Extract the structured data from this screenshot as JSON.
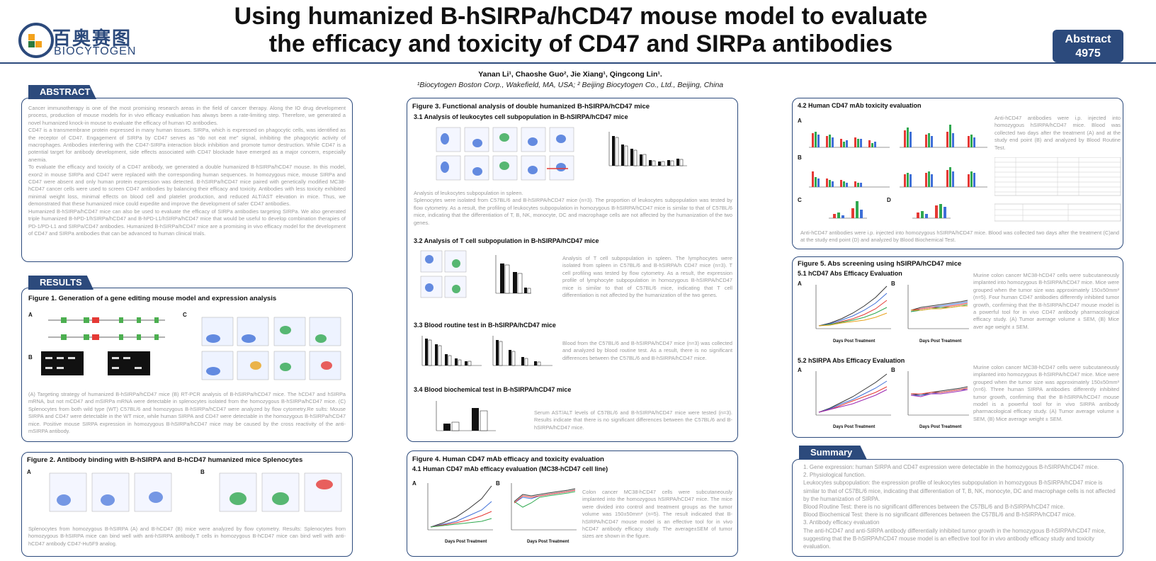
{
  "header": {
    "logo_cn": "百奥赛图",
    "logo_en": "BIOCYTOGEN",
    "title_line1": "Using humanized B-hSIRPa/hCD47 mouse model to evaluate",
    "title_line2": "the efficacy and toxicity of CD47 and SIRPa antibodies",
    "badge_line1": "Abstract",
    "badge_line2": "4975"
  },
  "authors": "Yanan Li¹, Chaoshe Guo², Jie Xiang¹, Qingcong Lin¹.",
  "affiliation": "¹Biocytogen Boston Corp., Wakefield, MA, USA; ² Beijing Biocytogen Co., Ltd., Beijing, China",
  "abstract": {
    "tab": "ABSTRACT",
    "p1": "Cancer immunotherapy is one of the most promising research areas in the field of cancer therapy. Along the IO drug development process, production of mouse models for in vivo efficacy evaluation has always been a rate-limiting step. Therefore, we generated a novel humanized knock-in mouse to evaluate the efficacy of human IO antibodies.",
    "p2": "CD47 is a transmembrane protein expressed in many human tissues. SIRPa, which is expressed on phagocytic cells, was identified as the receptor of CD47. Engagement of SIRPa by CD47 serves as \"do not eat me\" signal, inhibiting the phagocytic activity of macrophages. Antibodies interfering with the CD47-SIRPa interaction block inhibition and promote tumor destruction. While CD47 is a potential target for antibody development, side effects associated with CD47 blockade have emerged as a major concern, especially anemia.",
    "p3": "To evaluate the efficacy and toxicity of a CD47 antibody, we generated a double humanized B-hSIRPa/hCD47 mouse. In this model, exon2 in mouse SIRPa and CD47 were replaced with the corresponding human sequences. In homozygous mice, mouse SIRPa and CD47 were absent and only human protein expression was detected. B-hSIRPa/hCD47 mice paired with genetically modified MC38-hCD47 cancer cells were used to screen CD47 antibodies by balancing their efficacy and toxicity. Antibodies with less toxicity exhibited minimal weight loss, minimal effects on blood cell and platelet production, and reduced ALT/AST elevation in mice. Thus, we demonstrated that these humanized mice could expedite and improve the development of safer CD47 antibodies.",
    "p4": "Humanized B-hSIRPa/hCD47 mice can also be used to evaluate the efficacy of SIRPa antibodies targeting SIRPa. We also generated triple humanized B-hPD-1/hSIRPa/hCD47 and B-hPD-L1/hSIRPa/hCD47 mice that would be useful to develop combination therapies of PD-1/PD-L1 and SIRPa/CD47 antibodies. Humanized B-hSIRPa/hCD47 mice are a promising in vivo efficacy model for the development of CD47 and SIRPa antibodies that can be advanced to human clinical trials."
  },
  "results": {
    "tab": "RESULTS",
    "fig1": {
      "title": "Figure 1. Generation of a gene editing mouse model and expression analysis",
      "labels": [
        "A",
        "B",
        "C"
      ],
      "caption": "(A) Targeting strategy of humanized B-hSIRPa/hCD47 mice (B) RT-PCR analysis of B-hSIRPa/hCD47 mice. The hCD47 and hSIRPa mRNA, but not mCD47 and mSIRPa mRNA were detectable in splenocytes isolated from the homozygous B-hSIRPa/hCD47 mice. (C) Splenocytes from both wild type (WT) C57BL/6 and homozygous B-hSIRPa/hCD47 were analyzed by flow cytometry.Re sults: Mouse SIRPA and CD47 were detectable in the WT mice, while human SIRPA and CD47 were detectable in the homozygous B-hSIRPa/hCD47 mice. Positive mouse SIRPA expression in homozygous B-hSIRPa/hCD47 mice may be caused by the cross reactivity of the anti-mSIRPA antibody."
    },
    "fig2": {
      "title": "Figure 2. Antibody binding with B-hSIRPA and B-hCD47 humanized  mice Splenocytes",
      "labels": [
        "A",
        "B"
      ],
      "caption": "Splenocytes from homozygous B-hSIRPA (A) and B-hCD47 (B) mice were analyzed by flow cytometry. Results: Splenocytes from homozygous B-hSIRPA mice can bind well with anti-hSIRPA antibody.T cells in homozygous B-hCD47 mice can bind well with anti-hCD47 antibody CD47-Hu5F9 analog."
    }
  },
  "fig3": {
    "title": "Figure 3. Functional analysis of double humanized B-hSIRPA/hCD47 mice",
    "s1_title": "3.1 Analysis of leukocytes cell subpopulation in B-hSIRPA/hCD47 mice",
    "s1_text_a": "Analysis of leukocytes subpopulation in spleen.",
    "s1_text_b": "Splenocytes were isolated from C57BL/6 and B-hSIRPA/hCD47 mice (n=3). The proportion of leukocytes subpopulation was tested by flow cytometry. As a result, the profiling of leukocytes subpopulation in homozygous B-hSIRPA/hCD47 mice is similar to that of C57BL/6 mice, indicating that the differentiation of T, B, NK, monocyte, DC and macrophage cells are not affected by the humanization of the two genes.",
    "s2_title": "3.2 Analysis of T cell subpopulation in B-hSIRPA/hCD47 mice",
    "s2_text": "Analysis of T cell subpopulation in spleen. The lymphocytes were isolated from spleen in C57BL/6 and B-hSIRPA/h CD47 mice (n=3). T cell profiling was tested by flow cytometry. As a result, the expression profile of lymphocyte subpopulation in homozygous B-hSIRPA/hCD47 mice is similar to that of C57BL/6 mice, indicating that T cell differentiation is not affected by the humanization of the two genes.",
    "s3_title": "3.3 Blood routine test in B-hSIRPA/hCD47 mice",
    "s3_text": "Blood from the C57BL/6 and B-hSIRPA/hCD47 mice (n=3) was collected and analyzed by blood routine test. As a result, there is no significant differences between the C57BL/6 and B-hSIRPA/hCD47 mice.",
    "s4_title": "3.4 Blood biochemical test in B-hSIRPA/hCD47 mice",
    "s4_text": "Serum AST/ALT levels of C57BL/6 and B-hSIRPA/hCD47 mice were tested (n=3). Results indicate that there is no significant differences between the C57BL/6 and B-hSIRPA/hCD47 mice."
  },
  "fig4": {
    "title": "Figure 4. Human CD47 mAb efficacy and toxicity evaluation",
    "s1_title": "4.1 Human CD47 mAb efficacy evaluation (MC38-hCD47 cell line)",
    "labels": [
      "A",
      "B"
    ],
    "s1_text": "Colon cancer MC38-hCD47 cells were subcutaneously implanted into the homozygous hSIRPA/hCD47 mice. The mice were divided into control and treatment groups as the tumor volume was 150±50mm³ (n=5). The result indicated that B-hSIRPA/hCD47 mouse model is an effective tool for in vivo hCD47 antibody efficacy study. The average±SEM of tumor sizes are shown in the figure.",
    "xlabel": "Days Post Treatment",
    "s2_title": "4.2 Human CD47 mAb toxicity evaluation",
    "s2_labels": [
      "A",
      "B",
      "C",
      "D"
    ],
    "s2_text_right": "Anti-hCD47 antibodies were i.p. injected into homozygous hSIRPA/hCD47 mice. Blood was collected two days after the treatment (A) and at the study end point (B) and analyzed by Blood Routine Test.",
    "s2_text_bottom": "Anti-hCD47 antibodies were i.p. injected into homozygous hSIRPA/hCD47 mice. Blood was collected two days after the treatment (C)and at the study end point (D) and analyzed by Blood Biochemical Test."
  },
  "fig5": {
    "title": "Figure 5. Abs screening using hSIRPA/hCD47 mice",
    "s1_title": "5.1 hCD47 Abs Efficacy Evaluation",
    "s1_text": "Murine colon cancer MC38-hCD47 cells were subcutaneously implanted into homozygous B-hSIRPA/hCD47 mice. Mice were grouped when the tumor size was approximately 150±50mm³ (n=5). Four human CD47 antibodies differently inhibited tumor growth, confirming that the B-hSIRPA/hCD47 mouse model is a powerful tool for in vivo CD47 antibody pharmacological efficacy study. (A) Tumor average volume ± SEM, (B) Mice aver age weight ± SEM.",
    "s2_title": "5.2 hSIRPA Abs Efficacy Evaluation",
    "s2_text": "Murine colon cancer MC38-hCD47 cells were subcutaneously implanted into homozygous B-hSIRPA/hCD47 mice. Mice were grouped when the tumor size was approximately 150±50mm³ (n=6). Three human SIRPA antibodies differently inhibited tumor growth, confirming that the B-hSIRPA/hCD47 mouse model is a powerful tool for in vivo SIRPA antibody pharmacological efficacy study. (A) Tumor average volume ± SEM, (B) Mice average weight ± SEM.",
    "labels": [
      "A",
      "B"
    ],
    "xlabel": "Days Post Treatment"
  },
  "summary": {
    "tab": "Summary",
    "lines": [
      "1. Gene expression: human SIRPA and CD47 expression were detectable in the homozygous B-hSIRPA/hCD47 mice.",
      "2. Physiological function.",
      "Leukocytes subpopulation: the expression profile of leukocytes subpopulation in homozygous B-hSIRPA/hCD47 mice is similar to that of C57BL/6 mice, indicating that differentiation of T, B, NK, monocyte, DC and macrophage cells is not affected by the humanization of SIRPA.",
      "Blood Routine Test: there is no significant differences between the C57BL/6 and B-hSIRPA/hCD47 mice.",
      "Blood Biochemical Test: there is no significant differences between the C57BL/6 and B-hSIRPA/hCD47 mice.",
      "3. Antibody efficacy evaluation",
      "The anti-hCD47 and anti-SIRPA antibody differentially inhibited tumor growth in the homozygous B-hSIRPA/hCD47 mice, suggesting that the B-hSIRPA/hCD47 mouse model is an effective tool for in vivo antibody efficacy study and toxicity evaluation."
    ]
  },
  "colors": {
    "brand": "#2c4a7c",
    "accent": "#f3a21c",
    "text_muted": "#9a9a9a"
  }
}
